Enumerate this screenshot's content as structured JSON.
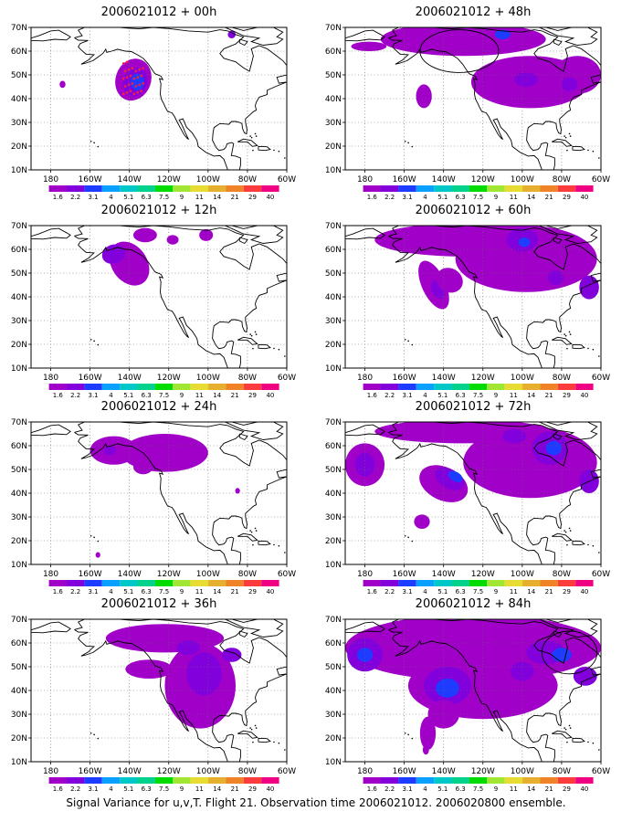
{
  "panels": [
    {
      "title": "2006021012 + 00h"
    },
    {
      "title": "2006021012 + 48h"
    },
    {
      "title": "2006021012 + 12h"
    },
    {
      "title": "2006021012 + 60h"
    },
    {
      "title": "2006021012 + 24h"
    },
    {
      "title": "2006021012 + 72h"
    },
    {
      "title": "2006021012 + 36h"
    },
    {
      "title": "2006021012 + 84h"
    }
  ],
  "axes": {
    "lat_labels": [
      "10N",
      "20N",
      "30N",
      "40N",
      "50N",
      "60N",
      "70N"
    ],
    "lon_labels": [
      "180",
      "160W",
      "140W",
      "120W",
      "100W",
      "80W",
      "60W"
    ],
    "lon_range": [
      -190,
      -60
    ],
    "lat_range": [
      10,
      70
    ]
  },
  "colorbar": {
    "labels": [
      "1.6",
      "2.2",
      "3.1",
      "4",
      "5.1",
      "6.3",
      "7.5",
      "9",
      "11",
      "14",
      "21",
      "29",
      "40"
    ],
    "colors": [
      "#a000c8",
      "#8200dc",
      "#1e3cff",
      "#0aa0ff",
      "#00c8c8",
      "#00d28c",
      "#00dc00",
      "#a0e632",
      "#e6dc32",
      "#e6af2d",
      "#f08228",
      "#fa3c3c",
      "#f00082"
    ]
  },
  "caption": "Signal Variance for u,v,T. Flight 21. Observation time 2006021012. 2006020800 ensemble."
}
